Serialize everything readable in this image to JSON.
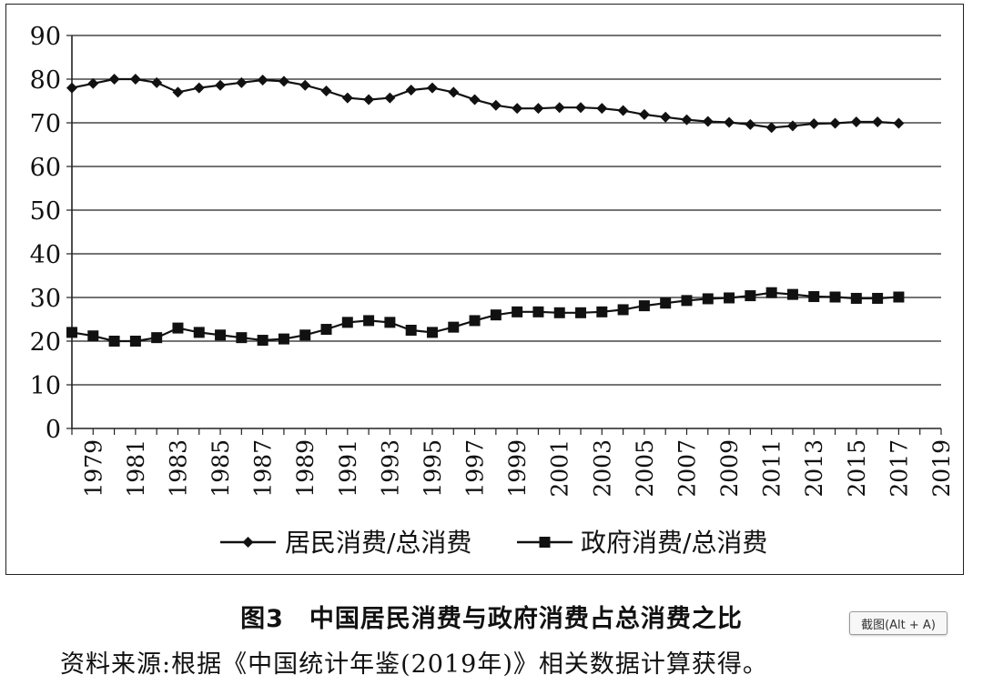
{
  "chart_data": {
    "type": "line",
    "title": "",
    "xlabel": "",
    "ylabel": "",
    "ylim": [
      0,
      90
    ],
    "ytick_step": 10,
    "xlim": [
      1978,
      2019
    ],
    "x_tick_labels": [
      "1979",
      "1981",
      "1983",
      "1985",
      "1987",
      "1989",
      "1991",
      "1993",
      "1995",
      "1997",
      "1999",
      "2001",
      "2003",
      "2005",
      "2007",
      "2009",
      "2011",
      "2013",
      "2015",
      "2017",
      "2019"
    ],
    "grid": "horizontal",
    "legend_position": "bottom",
    "x": [
      1978,
      1979,
      1980,
      1981,
      1982,
      1983,
      1984,
      1985,
      1986,
      1987,
      1988,
      1989,
      1990,
      1991,
      1992,
      1993,
      1994,
      1995,
      1996,
      1997,
      1998,
      1999,
      2000,
      2001,
      2002,
      2003,
      2004,
      2005,
      2006,
      2007,
      2008,
      2009,
      2010,
      2011,
      2012,
      2013,
      2014,
      2015,
      2016,
      2017
    ],
    "series": [
      {
        "name": "居民消费/总消费",
        "marker": "diamond",
        "color": "#111111",
        "values": [
          78.0,
          79.0,
          80.0,
          80.0,
          79.2,
          77.0,
          78.0,
          78.6,
          79.2,
          79.8,
          79.5,
          78.6,
          77.3,
          75.7,
          75.3,
          75.7,
          77.5,
          78.0,
          77.0,
          75.3,
          74.0,
          73.3,
          73.3,
          73.5,
          73.5,
          73.3,
          72.8,
          71.9,
          71.3,
          70.7,
          70.3,
          70.1,
          69.6,
          68.9,
          69.3,
          69.8,
          69.9,
          70.2,
          70.2,
          69.9
        ]
      },
      {
        "name": "政府消费/总消费",
        "marker": "square",
        "color": "#111111",
        "values": [
          22.0,
          21.2,
          20.0,
          20.0,
          20.8,
          23.0,
          22.0,
          21.4,
          20.8,
          20.2,
          20.5,
          21.4,
          22.7,
          24.3,
          24.7,
          24.3,
          22.5,
          22.0,
          23.2,
          24.7,
          26.0,
          26.7,
          26.7,
          26.5,
          26.5,
          26.7,
          27.2,
          28.1,
          28.7,
          29.3,
          29.7,
          29.9,
          30.4,
          31.1,
          30.7,
          30.2,
          30.1,
          29.8,
          29.8,
          30.1
        ]
      }
    ]
  },
  "caption": "图3　中国居民消费与政府消费占总消费之比",
  "source_note": "资料来源:根据《中国统计年鉴(2019年)》相关数据计算获得。",
  "screenshot_button": "截图(Alt + A)"
}
